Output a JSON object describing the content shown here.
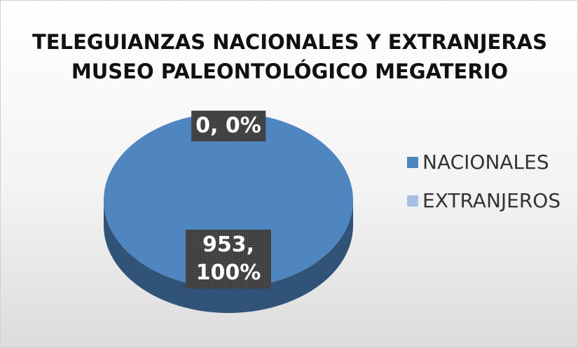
{
  "chart_data": {
    "type": "pie",
    "title": "TELEGUIANZAS NACIONALES Y EXTRANJERAS",
    "subtitle": "MUSEO PALEONTOLÓGICO MEGATERIO",
    "categories": [
      "NACIONALES",
      "EXTRANJEROS"
    ],
    "values": [
      953,
      0
    ],
    "value_labels": [
      "953, 100%",
      "0, 0%"
    ],
    "colors": [
      "#4f86c0",
      "#a7c0e2"
    ],
    "legend": "right"
  }
}
